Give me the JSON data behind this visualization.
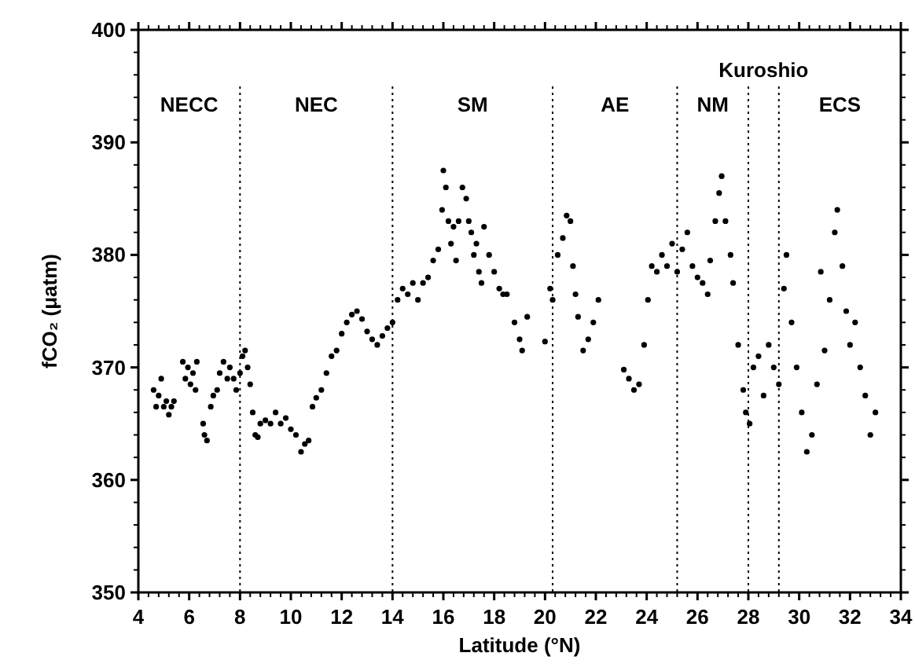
{
  "chart_data": {
    "type": "scatter",
    "xlabel": "Latitude (°N)",
    "ylabel": "fCO₂ (μatm)",
    "xlim": [
      4,
      34
    ],
    "xticks": [
      4,
      6,
      8,
      10,
      12,
      14,
      16,
      18,
      20,
      22,
      24,
      26,
      28,
      30,
      32,
      34
    ],
    "ylim": [
      350,
      400
    ],
    "yticks": [
      350,
      360,
      370,
      380,
      390,
      400
    ],
    "marker": "circle",
    "series": [
      {
        "color": "#000000",
        "x": [
          4.6,
          4.7,
          4.8,
          4.9,
          5.0,
          5.1,
          5.2,
          5.3,
          5.4,
          5.75,
          5.85,
          5.95,
          6.05,
          6.15,
          6.25,
          6.3,
          6.55,
          6.6,
          6.7,
          6.85,
          6.95,
          7.1,
          7.2,
          7.35,
          7.5,
          7.6,
          7.75,
          7.85,
          8.0,
          8.1,
          8.2,
          8.3,
          8.4,
          8.5,
          8.6,
          8.7,
          8.8,
          9.0,
          9.2,
          9.4,
          9.6,
          9.8,
          10.0,
          10.2,
          10.4,
          10.55,
          10.7,
          10.85,
          11.0,
          11.2,
          11.4,
          11.6,
          11.8,
          12.0,
          12.2,
          12.4,
          12.6,
          12.8,
          13.0,
          13.2,
          13.4,
          13.6,
          13.8,
          14.0,
          14.2,
          14.4,
          14.6,
          14.8,
          15.0,
          15.2,
          15.4,
          15.6,
          15.8,
          15.95,
          16.0,
          16.1,
          16.2,
          16.3,
          16.4,
          16.5,
          16.6,
          16.75,
          16.9,
          17.0,
          17.1,
          17.2,
          17.3,
          17.4,
          17.5,
          17.6,
          17.8,
          18.0,
          18.2,
          18.35,
          18.5,
          18.8,
          19.0,
          19.1,
          19.3,
          20.0,
          20.2,
          20.3,
          20.5,
          20.7,
          20.85,
          21.0,
          21.1,
          21.2,
          21.3,
          21.5,
          21.7,
          21.9,
          22.1,
          23.1,
          23.3,
          23.5,
          23.7,
          23.9,
          24.05,
          24.2,
          24.4,
          24.6,
          24.8,
          25.0,
          25.2,
          25.4,
          25.6,
          25.8,
          26.0,
          26.2,
          26.4,
          26.5,
          26.7,
          26.85,
          26.95,
          27.1,
          27.3,
          27.4,
          27.6,
          27.8,
          27.9,
          28.05,
          28.2,
          28.4,
          28.6,
          28.8,
          29.0,
          29.2,
          29.4,
          29.5,
          29.7,
          29.9,
          30.1,
          30.3,
          30.5,
          30.7,
          30.85,
          31.0,
          31.2,
          31.4,
          31.5,
          31.7,
          31.85,
          32.0,
          32.2,
          32.4,
          32.6,
          32.8,
          33.0
        ],
        "values": [
          368,
          366.5,
          367.5,
          369,
          366.5,
          367,
          365.8,
          366.5,
          367,
          370.5,
          369,
          370,
          368.5,
          369.5,
          368,
          370.5,
          365,
          364,
          363.5,
          366.5,
          367.5,
          368,
          369.5,
          370.5,
          369,
          370,
          369,
          368,
          369.5,
          371,
          371.5,
          370,
          368.5,
          366,
          364,
          363.8,
          365,
          365.3,
          365,
          366,
          365,
          365.5,
          364.5,
          364,
          362.5,
          363.2,
          363.5,
          366.5,
          367.3,
          368,
          369.5,
          371,
          371.5,
          373,
          374,
          374.7,
          375,
          374.3,
          373.2,
          372.5,
          372,
          372.8,
          373.5,
          374,
          376,
          377,
          376.5,
          377.5,
          376,
          377.5,
          378,
          379.5,
          380.5,
          384,
          387.5,
          386,
          383,
          381,
          382.5,
          379.5,
          383,
          386,
          385,
          383,
          382,
          380,
          381,
          378.5,
          377.5,
          382.5,
          380,
          378.5,
          377,
          376.5,
          376.5,
          374,
          372.5,
          371.5,
          374.5,
          372.3,
          377,
          376,
          380,
          381.5,
          383.5,
          383,
          379,
          376.5,
          374.5,
          371.5,
          372.5,
          374,
          376,
          369.8,
          369,
          368,
          368.5,
          372,
          376,
          379,
          378.5,
          380,
          379,
          381,
          378.5,
          380.5,
          382,
          379,
          378,
          377.5,
          376.5,
          379.5,
          383,
          385.5,
          387,
          383,
          380,
          377.5,
          372,
          368,
          366,
          365,
          370,
          371,
          367.5,
          372,
          370,
          368.5,
          377,
          380,
          374,
          370,
          366,
          362.5,
          364,
          368.5,
          378.5,
          371.5,
          376,
          382,
          384,
          379,
          375,
          372,
          374,
          370,
          367.5,
          364,
          366
        ]
      }
    ],
    "ref_lines": [
      {
        "axis": "x",
        "value": 8,
        "line_style": "dotted"
      },
      {
        "axis": "x",
        "value": 14,
        "line_style": "dotted"
      },
      {
        "axis": "x",
        "value": 20.3,
        "line_style": "dotted"
      },
      {
        "axis": "x",
        "value": 25.2,
        "line_style": "dotted"
      },
      {
        "axis": "x",
        "value": 28,
        "line_style": "dotted"
      },
      {
        "axis": "x",
        "value": 29.2,
        "line_style": "dotted"
      }
    ],
    "annotations": [
      "NECC",
      "NEC",
      "SM",
      "AE",
      "NM",
      "Kuroshio",
      "ECS"
    ]
  }
}
